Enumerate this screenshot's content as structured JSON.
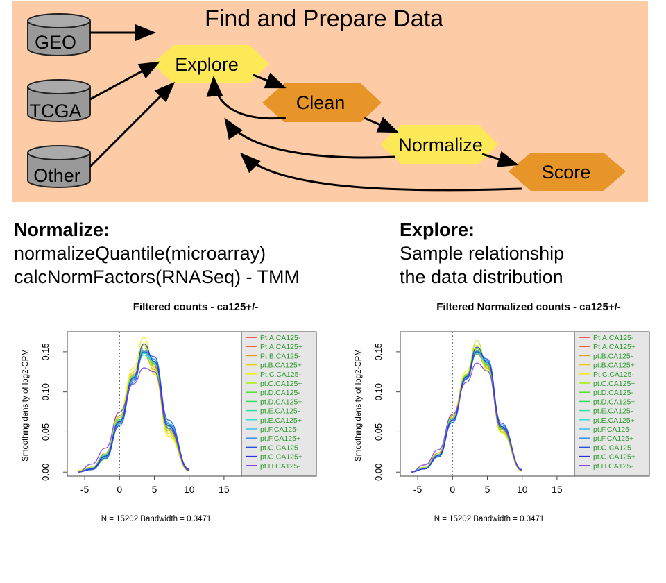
{
  "flowchart": {
    "title": "Find and Prepare Data",
    "sources": [
      "GEO",
      "TCGA",
      "Other"
    ],
    "steps": [
      "Explore",
      "Clean",
      "Normalize",
      "Score"
    ],
    "colors": {
      "background": "#fdcca6",
      "step_light": "#fde857",
      "step_dark": "#e79528",
      "db": "#999999"
    }
  },
  "notes": {
    "normalize": {
      "title": "Normalize:",
      "lines": [
        "normalizeQuantile(microarray)",
        "calcNormFactors(RNASeq) - TMM"
      ]
    },
    "explore": {
      "title": "Explore:",
      "lines": [
        "Sample relationship",
        "the data distribution"
      ]
    }
  },
  "chart_data": [
    {
      "type": "line",
      "title": "Filtered counts - ca125+/-",
      "ylabel": "Smoothing density of log2-CPM",
      "xlabel": "N = 15202   Bandwidth = 0.3471",
      "xlim": [
        -7.5,
        17.5
      ],
      "ylim": [
        -0.005,
        0.175
      ],
      "xticks": [
        -5,
        0,
        5,
        10,
        15
      ],
      "yticks": [
        0.0,
        0.05,
        0.1,
        0.15
      ],
      "ytick_labels": [
        "0.00",
        "0.05",
        "0.10",
        "0.15"
      ],
      "reference_line_x": 0,
      "legend_position": "right",
      "legend": [
        "Pt.A.CA125-",
        "Pt.A.CA125+",
        "Pt.B.CA125-",
        "pt.B.CA125+",
        "Pt.C.CA125-",
        "pt.C.CA125+",
        "pt.D.CA125-",
        "pt.D.CA125+",
        "pt.E.CA125-",
        "pt.E.CA125+",
        "pt.F.CA125-",
        "pt.F.CA125+",
        "pt.G.CA125-",
        "pt.G.CA125+",
        "pt.H.CA125-"
      ],
      "series_colors": [
        "#ff3030",
        "#ff5a30",
        "#d8a000",
        "#e8d000",
        "#f0f000",
        "#a0f000",
        "#50e030",
        "#30e060",
        "#30e0a0",
        "#30e0d0",
        "#30c0f0",
        "#3090f0",
        "#2050e8",
        "#3030d8",
        "#8040e0"
      ],
      "series": [
        {
          "x": [
            -6,
            -4,
            -2,
            0,
            2,
            3.5,
            5,
            7,
            10
          ],
          "y": [
            0.0,
            0.006,
            0.022,
            0.065,
            0.118,
            0.15,
            0.132,
            0.055,
            0.002
          ]
        },
        {
          "x": [
            -6,
            -4,
            -2,
            0,
            2,
            3.5,
            5,
            7,
            10
          ],
          "y": [
            0.0,
            0.004,
            0.02,
            0.062,
            0.115,
            0.152,
            0.135,
            0.058,
            0.003
          ]
        },
        {
          "x": [
            -6,
            -4,
            -2,
            0,
            2,
            3.5,
            5,
            7,
            10
          ],
          "y": [
            0.001,
            0.005,
            0.024,
            0.07,
            0.122,
            0.146,
            0.128,
            0.052,
            0.002
          ]
        },
        {
          "x": [
            -6,
            -4,
            -2,
            0,
            2,
            3.5,
            5,
            7,
            10
          ],
          "y": [
            0.0,
            0.005,
            0.021,
            0.068,
            0.125,
            0.158,
            0.126,
            0.048,
            0.002
          ]
        },
        {
          "x": [
            -6,
            -4,
            -2,
            0,
            2,
            3.5,
            5,
            7,
            10
          ],
          "y": [
            0.002,
            0.006,
            0.018,
            0.075,
            0.13,
            0.168,
            0.122,
            0.045,
            0.001
          ]
        },
        {
          "x": [
            -6,
            -4,
            -2,
            0,
            2,
            3.5,
            5,
            7,
            10
          ],
          "y": [
            0.0,
            0.003,
            0.016,
            0.06,
            0.12,
            0.16,
            0.13,
            0.05,
            0.002
          ]
        },
        {
          "x": [
            -6,
            -4,
            -2,
            0,
            2,
            3.5,
            5,
            7,
            10
          ],
          "y": [
            0.0,
            0.004,
            0.019,
            0.064,
            0.118,
            0.155,
            0.134,
            0.054,
            0.002
          ]
        },
        {
          "x": [
            -6,
            -4,
            -2,
            0,
            2,
            3.5,
            5,
            7,
            10
          ],
          "y": [
            0.0,
            0.005,
            0.022,
            0.066,
            0.12,
            0.15,
            0.136,
            0.057,
            0.003
          ]
        },
        {
          "x": [
            -6,
            -4,
            -2,
            0,
            2,
            3.5,
            5,
            7,
            10
          ],
          "y": [
            0.0,
            0.004,
            0.02,
            0.063,
            0.117,
            0.148,
            0.138,
            0.06,
            0.003
          ]
        },
        {
          "x": [
            -6,
            -4,
            -2,
            0,
            2,
            3.5,
            5,
            7,
            10
          ],
          "y": [
            0.0,
            0.005,
            0.021,
            0.065,
            0.119,
            0.146,
            0.137,
            0.058,
            0.002
          ]
        },
        {
          "x": [
            -6,
            -4,
            -2,
            0,
            2,
            3.5,
            5,
            7,
            10
          ],
          "y": [
            0.0,
            0.004,
            0.018,
            0.06,
            0.114,
            0.15,
            0.14,
            0.062,
            0.003
          ]
        },
        {
          "x": [
            -6,
            -4,
            -2,
            0,
            2,
            3.5,
            5,
            7,
            10
          ],
          "y": [
            0.0,
            0.004,
            0.019,
            0.061,
            0.116,
            0.152,
            0.141,
            0.06,
            0.003
          ]
        },
        {
          "x": [
            -6,
            -4,
            -2,
            0,
            2,
            3.5,
            5,
            7,
            10
          ],
          "y": [
            0.0,
            0.003,
            0.017,
            0.058,
            0.112,
            0.15,
            0.144,
            0.065,
            0.004
          ]
        },
        {
          "x": [
            -6,
            -4,
            -2,
            0,
            2,
            3.5,
            5,
            7,
            10
          ],
          "y": [
            0.0,
            0.004,
            0.02,
            0.063,
            0.118,
            0.16,
            0.138,
            0.058,
            0.003
          ]
        },
        {
          "x": [
            -6,
            -4,
            -2,
            0,
            2,
            3.5,
            5,
            7,
            10
          ],
          "y": [
            0.0,
            0.01,
            0.03,
            0.075,
            0.11,
            0.13,
            0.125,
            0.055,
            0.002
          ]
        }
      ]
    },
    {
      "type": "line",
      "title": "Filtered Normalized counts - ca125+/-",
      "ylabel": "Smoothing density of log2-CPM",
      "xlabel": "N = 15202   Bandwidth = 0.3471",
      "xlim": [
        -7.5,
        17.5
      ],
      "ylim": [
        -0.005,
        0.175
      ],
      "xticks": [
        -5,
        0,
        5,
        10,
        15
      ],
      "yticks": [
        0.0,
        0.05,
        0.1,
        0.15
      ],
      "ytick_labels": [
        "0.00",
        "0.05",
        "0.10",
        "0.15"
      ],
      "reference_line_x": 0,
      "legend_position": "right",
      "legend": [
        "Pt.A.CA125-",
        "Pt.A.CA125+",
        "pt.B.CA125-",
        "pt.B.CA125+",
        "Pt.C.CA125-",
        "pt.C.CA125+",
        "pt.D.CA125-",
        "pt.D.CA125+",
        "pt.E.CA125-",
        "pt.E.CA125+",
        "pt.F.CA125-",
        "pt.F.CA125+",
        "pt.G.CA125-",
        "pt.G.CA125+",
        "pt.H.CA125-"
      ],
      "series_colors": [
        "#ff3030",
        "#ff5a30",
        "#d8a000",
        "#e8d000",
        "#f0f000",
        "#a0f000",
        "#50e030",
        "#30e060",
        "#30e0a0",
        "#30e0d0",
        "#30c0f0",
        "#3090f0",
        "#2050e8",
        "#3030d8",
        "#8040e0"
      ],
      "series": [
        {
          "x": [
            -6,
            -4,
            -2,
            0,
            2,
            3.5,
            5,
            7,
            10
          ],
          "y": [
            0.0,
            0.006,
            0.024,
            0.068,
            0.12,
            0.148,
            0.132,
            0.055,
            0.002
          ]
        },
        {
          "x": [
            -6,
            -4,
            -2,
            0,
            2,
            3.5,
            5,
            7,
            10
          ],
          "y": [
            0.0,
            0.005,
            0.022,
            0.066,
            0.118,
            0.15,
            0.134,
            0.056,
            0.002
          ]
        },
        {
          "x": [
            -6,
            -4,
            -2,
            0,
            2,
            3.5,
            5,
            7,
            10
          ],
          "y": [
            0.001,
            0.006,
            0.024,
            0.07,
            0.121,
            0.147,
            0.13,
            0.053,
            0.002
          ]
        },
        {
          "x": [
            -6,
            -4,
            -2,
            0,
            2,
            3.5,
            5,
            7,
            10
          ],
          "y": [
            0.0,
            0.005,
            0.022,
            0.068,
            0.122,
            0.152,
            0.129,
            0.051,
            0.002
          ]
        },
        {
          "x": [
            -6,
            -4,
            -2,
            0,
            2,
            3.5,
            5,
            7,
            10
          ],
          "y": [
            0.001,
            0.006,
            0.02,
            0.072,
            0.126,
            0.158,
            0.127,
            0.049,
            0.001
          ]
        },
        {
          "x": [
            -6,
            -4,
            -2,
            0,
            2,
            3.5,
            5,
            7,
            10
          ],
          "y": [
            0.0,
            0.004,
            0.019,
            0.066,
            0.122,
            0.164,
            0.13,
            0.05,
            0.002
          ]
        },
        {
          "x": [
            -6,
            -4,
            -2,
            0,
            2,
            3.5,
            5,
            7,
            10
          ],
          "y": [
            0.0,
            0.005,
            0.021,
            0.066,
            0.12,
            0.154,
            0.133,
            0.054,
            0.002
          ]
        },
        {
          "x": [
            -6,
            -4,
            -2,
            0,
            2,
            3.5,
            5,
            7,
            10
          ],
          "y": [
            0.0,
            0.005,
            0.022,
            0.067,
            0.12,
            0.15,
            0.135,
            0.056,
            0.003
          ]
        },
        {
          "x": [
            -6,
            -4,
            -2,
            0,
            2,
            3.5,
            5,
            7,
            10
          ],
          "y": [
            0.0,
            0.005,
            0.021,
            0.066,
            0.119,
            0.149,
            0.136,
            0.057,
            0.003
          ]
        },
        {
          "x": [
            -6,
            -4,
            -2,
            0,
            2,
            3.5,
            5,
            7,
            10
          ],
          "y": [
            0.0,
            0.005,
            0.021,
            0.066,
            0.119,
            0.148,
            0.136,
            0.057,
            0.002
          ]
        },
        {
          "x": [
            -6,
            -4,
            -2,
            0,
            2,
            3.5,
            5,
            7,
            10
          ],
          "y": [
            0.0,
            0.004,
            0.02,
            0.064,
            0.117,
            0.15,
            0.138,
            0.059,
            0.003
          ]
        },
        {
          "x": [
            -6,
            -4,
            -2,
            0,
            2,
            3.5,
            5,
            7,
            10
          ],
          "y": [
            0.0,
            0.004,
            0.02,
            0.064,
            0.118,
            0.151,
            0.139,
            0.059,
            0.003
          ]
        },
        {
          "x": [
            -6,
            -4,
            -2,
            0,
            2,
            3.5,
            5,
            7,
            10
          ],
          "y": [
            0.0,
            0.004,
            0.019,
            0.062,
            0.116,
            0.15,
            0.141,
            0.061,
            0.003
          ]
        },
        {
          "x": [
            -6,
            -4,
            -2,
            0,
            2,
            3.5,
            5,
            7,
            10
          ],
          "y": [
            0.0,
            0.004,
            0.021,
            0.065,
            0.119,
            0.156,
            0.137,
            0.057,
            0.003
          ]
        },
        {
          "x": [
            -6,
            -4,
            -2,
            0,
            2,
            3.5,
            5,
            7,
            10
          ],
          "y": [
            0.0,
            0.009,
            0.028,
            0.072,
            0.112,
            0.136,
            0.126,
            0.055,
            0.002
          ]
        }
      ]
    }
  ]
}
